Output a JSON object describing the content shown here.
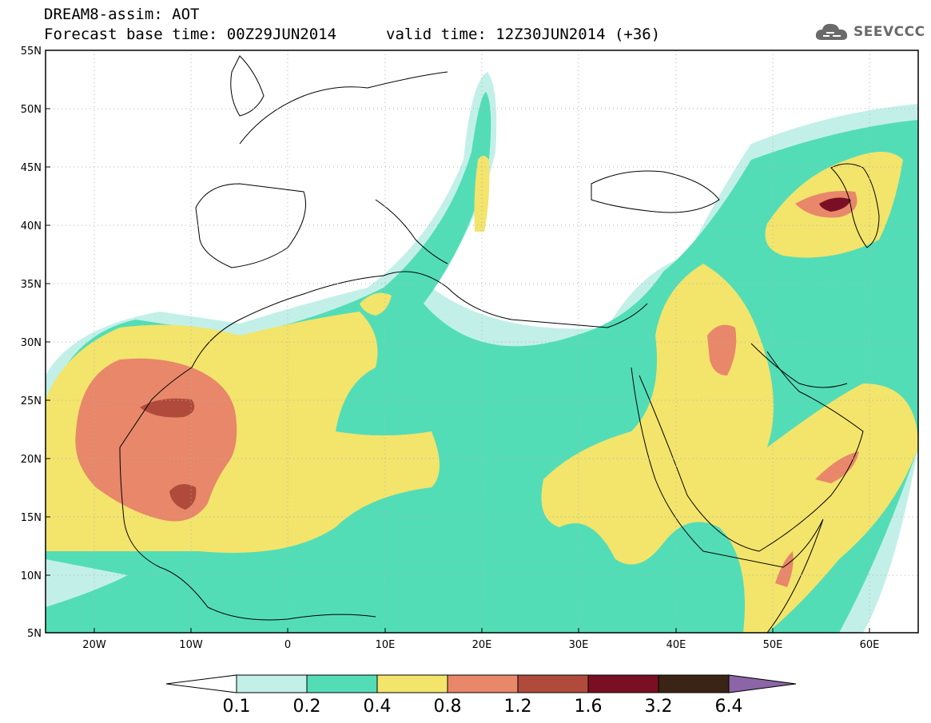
{
  "header": {
    "line1": "DREAM8-assim: AOT",
    "base_time": "Forecast base time: 00Z29JUN2014",
    "valid_time": "valid time: 12Z30JUN2014 (+36)",
    "logo_text": "SEEVCCC"
  },
  "map": {
    "lat_labels": [
      "55N",
      "50N",
      "45N",
      "40N",
      "35N",
      "30N",
      "25N",
      "20N",
      "15N",
      "10N",
      "5N"
    ],
    "lon_labels": [
      "20W",
      "10W",
      "0",
      "10E",
      "20E",
      "30E",
      "40E",
      "50E",
      "60E"
    ],
    "variable": "AOT"
  },
  "legend": {
    "levels": [
      "0.1",
      "0.2",
      "0.4",
      "0.8",
      "1.2",
      "1.6",
      "3.2",
      "6.4"
    ],
    "colors": [
      "#c2f0e8",
      "#53ddb6",
      "#f3e46c",
      "#e8876a",
      "#b04b3c",
      "#7a0f24",
      "#3a2415",
      "#8b65a6"
    ]
  }
}
